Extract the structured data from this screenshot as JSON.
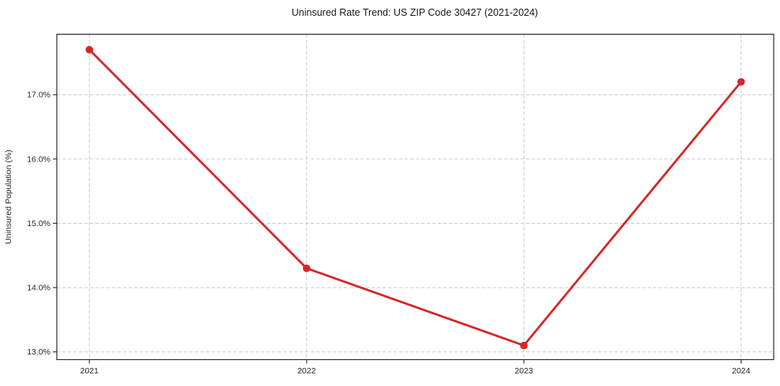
{
  "chart_data": {
    "type": "line",
    "title": "Uninsured Rate Trend: US ZIP Code 30427 (2021-2024)",
    "xlabel": "",
    "ylabel": "Uninsured Population (%)",
    "x": [
      2021,
      2022,
      2023,
      2024
    ],
    "values": [
      17.7,
      14.3,
      13.1,
      17.2
    ],
    "series_name": "Uninsured rate",
    "xtick_labels": [
      "2021",
      "2022",
      "2023",
      "2024"
    ],
    "xticks": [
      2021,
      2022,
      2023,
      2024
    ],
    "ytick_labels": [
      "13.0%",
      "14.0%",
      "15.0%",
      "16.0%",
      "17.0%"
    ],
    "yticks": [
      13.0,
      14.0,
      15.0,
      16.0,
      17.0
    ],
    "xlim": [
      2020.85,
      2024.15
    ],
    "ylim": [
      12.88,
      17.94
    ],
    "grid": true,
    "grid_style": "dashed",
    "legend": "none",
    "line_color": "#d62728",
    "marker_color": "#d62728",
    "grid_color": "#cccccc",
    "spine_color": "#2b2b2b",
    "background_color": "#ffffff"
  }
}
